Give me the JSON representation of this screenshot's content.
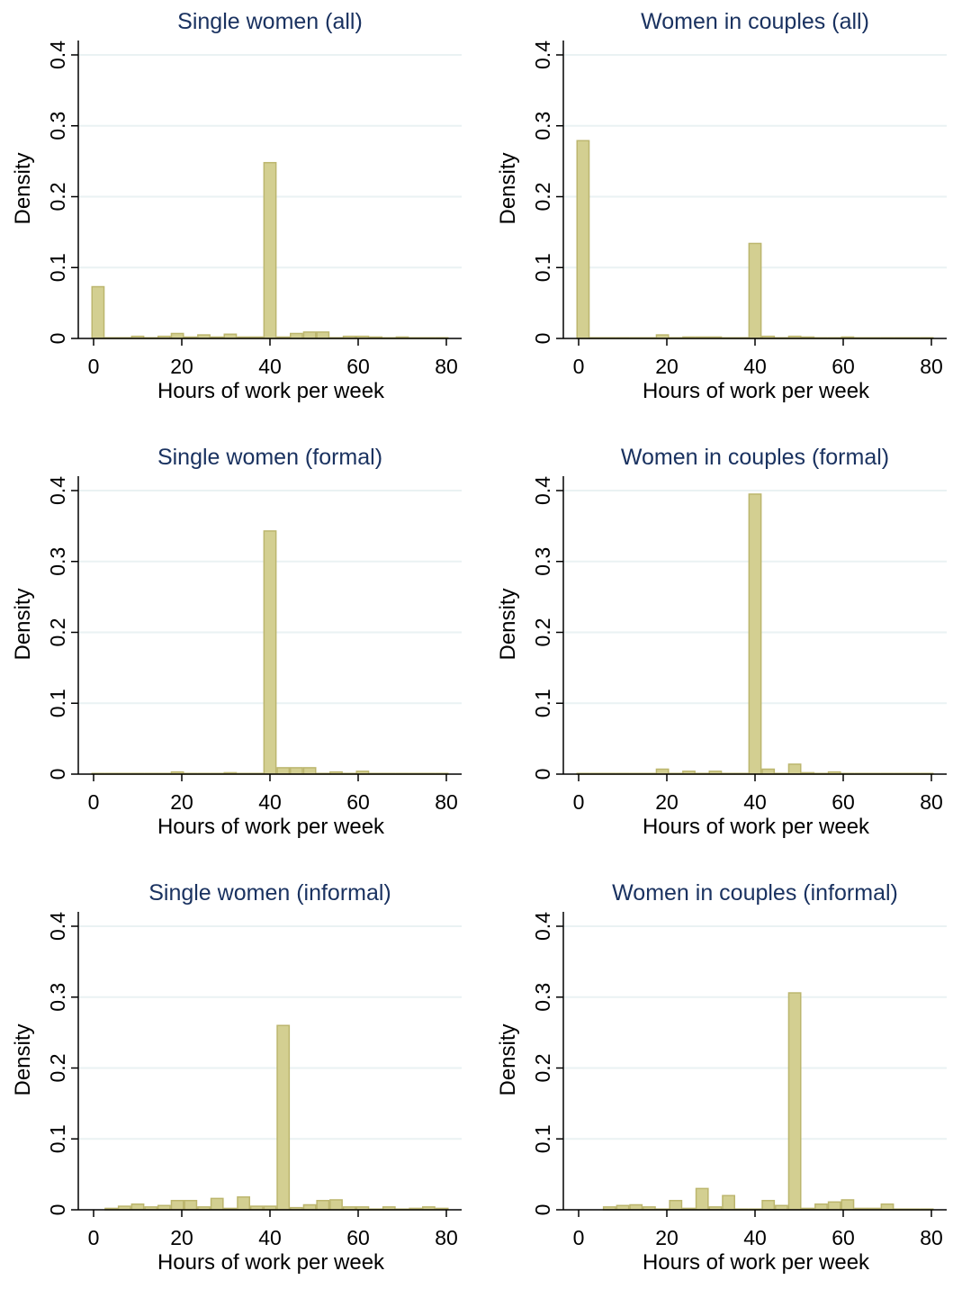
{
  "chart_data": [
    {
      "type": "bar",
      "title": "Single women (all)",
      "xlabel": "Hours of work per week",
      "ylabel": "Density",
      "xlim": [
        0,
        80
      ],
      "ylim": [
        0,
        0.4
      ],
      "xticks": [
        "0",
        "20",
        "40",
        "60",
        "80"
      ],
      "yticks": [
        "0",
        "0.1",
        "0.2",
        "0.3",
        "0.4"
      ],
      "grid": true,
      "bin_width": 3,
      "bars": [
        {
          "x": 1,
          "y": 0.073
        },
        {
          "x": 4,
          "y": 0.001
        },
        {
          "x": 7,
          "y": 0.001
        },
        {
          "x": 10,
          "y": 0.003
        },
        {
          "x": 13,
          "y": 0.001
        },
        {
          "x": 16,
          "y": 0.003
        },
        {
          "x": 19,
          "y": 0.007
        },
        {
          "x": 22,
          "y": 0.002
        },
        {
          "x": 25,
          "y": 0.005
        },
        {
          "x": 28,
          "y": 0.002
        },
        {
          "x": 31,
          "y": 0.006
        },
        {
          "x": 34,
          "y": 0.002
        },
        {
          "x": 37,
          "y": 0.002
        },
        {
          "x": 40,
          "y": 0.248
        },
        {
          "x": 43,
          "y": 0.002
        },
        {
          "x": 46,
          "y": 0.007
        },
        {
          "x": 49,
          "y": 0.009
        },
        {
          "x": 52,
          "y": 0.009
        },
        {
          "x": 55,
          "y": 0.001
        },
        {
          "x": 58,
          "y": 0.003
        },
        {
          "x": 61,
          "y": 0.003
        },
        {
          "x": 64,
          "y": 0.002
        },
        {
          "x": 67,
          "y": 0.001
        },
        {
          "x": 70,
          "y": 0.002
        },
        {
          "x": 73,
          "y": 0.001
        },
        {
          "x": 76,
          "y": 0.001
        },
        {
          "x": 79,
          "y": 0.001
        }
      ]
    },
    {
      "type": "bar",
      "title": "Women in couples (all)",
      "xlabel": "Hours of work per week",
      "ylabel": "Density",
      "xlim": [
        0,
        80
      ],
      "ylim": [
        0,
        0.4
      ],
      "xticks": [
        "0",
        "20",
        "40",
        "60",
        "80"
      ],
      "yticks": [
        "0",
        "0.1",
        "0.2",
        "0.3",
        "0.4"
      ],
      "grid": true,
      "bin_width": 3,
      "bars": [
        {
          "x": 1,
          "y": 0.279
        },
        {
          "x": 4,
          "y": 0.001
        },
        {
          "x": 7,
          "y": 0.001
        },
        {
          "x": 10,
          "y": 0.001
        },
        {
          "x": 13,
          "y": 0.001
        },
        {
          "x": 16,
          "y": 0.001
        },
        {
          "x": 19,
          "y": 0.005
        },
        {
          "x": 22,
          "y": 0.001
        },
        {
          "x": 25,
          "y": 0.002
        },
        {
          "x": 28,
          "y": 0.002
        },
        {
          "x": 31,
          "y": 0.002
        },
        {
          "x": 34,
          "y": 0.001
        },
        {
          "x": 37,
          "y": 0.001
        },
        {
          "x": 40,
          "y": 0.134
        },
        {
          "x": 43,
          "y": 0.003
        },
        {
          "x": 46,
          "y": 0.001
        },
        {
          "x": 49,
          "y": 0.003
        },
        {
          "x": 52,
          "y": 0.002
        },
        {
          "x": 55,
          "y": 0.001
        },
        {
          "x": 58,
          "y": 0.001
        },
        {
          "x": 61,
          "y": 0.002
        },
        {
          "x": 64,
          "y": 0.001
        },
        {
          "x": 67,
          "y": 0.001
        },
        {
          "x": 70,
          "y": 0.001
        },
        {
          "x": 73,
          "y": 0.001
        },
        {
          "x": 76,
          "y": 0.001
        },
        {
          "x": 79,
          "y": 0.001
        }
      ]
    },
    {
      "type": "bar",
      "title": "Single women (formal)",
      "xlabel": "Hours of work per week",
      "ylabel": "Density",
      "xlim": [
        0,
        80
      ],
      "ylim": [
        0,
        0.4
      ],
      "xticks": [
        "0",
        "20",
        "40",
        "60",
        "80"
      ],
      "yticks": [
        "0",
        "0.1",
        "0.2",
        "0.3",
        "0.4"
      ],
      "grid": true,
      "bin_width": 3,
      "bars": [
        {
          "x": 1,
          "y": 0.001
        },
        {
          "x": 4,
          "y": 0.001
        },
        {
          "x": 7,
          "y": 0.001
        },
        {
          "x": 10,
          "y": 0.001
        },
        {
          "x": 13,
          "y": 0.001
        },
        {
          "x": 16,
          "y": 0.001
        },
        {
          "x": 19,
          "y": 0.003
        },
        {
          "x": 22,
          "y": 0.001
        },
        {
          "x": 25,
          "y": 0.001
        },
        {
          "x": 28,
          "y": 0.001
        },
        {
          "x": 31,
          "y": 0.002
        },
        {
          "x": 34,
          "y": 0.001
        },
        {
          "x": 37,
          "y": 0.001
        },
        {
          "x": 40,
          "y": 0.343
        },
        {
          "x": 43,
          "y": 0.009
        },
        {
          "x": 46,
          "y": 0.009
        },
        {
          "x": 49,
          "y": 0.009
        },
        {
          "x": 52,
          "y": 0.001
        },
        {
          "x": 55,
          "y": 0.003
        },
        {
          "x": 58,
          "y": 0.001
        },
        {
          "x": 61,
          "y": 0.004
        },
        {
          "x": 64,
          "y": 0.001
        },
        {
          "x": 67,
          "y": 0.001
        },
        {
          "x": 70,
          "y": 0.001
        },
        {
          "x": 73,
          "y": 0.001
        },
        {
          "x": 76,
          "y": 0.001
        },
        {
          "x": 79,
          "y": 0.001
        }
      ]
    },
    {
      "type": "bar",
      "title": "Women in couples (formal)",
      "xlabel": "Hours of work per week",
      "ylabel": "Density",
      "xlim": [
        0,
        80
      ],
      "ylim": [
        0,
        0.4
      ],
      "xticks": [
        "0",
        "20",
        "40",
        "60",
        "80"
      ],
      "yticks": [
        "0",
        "0.1",
        "0.2",
        "0.3",
        "0.4"
      ],
      "grid": true,
      "bin_width": 3,
      "bars": [
        {
          "x": 1,
          "y": 0.001
        },
        {
          "x": 4,
          "y": 0.001
        },
        {
          "x": 7,
          "y": 0.001
        },
        {
          "x": 10,
          "y": 0.001
        },
        {
          "x": 13,
          "y": 0.001
        },
        {
          "x": 16,
          "y": 0.001
        },
        {
          "x": 19,
          "y": 0.007
        },
        {
          "x": 22,
          "y": 0.001
        },
        {
          "x": 25,
          "y": 0.004
        },
        {
          "x": 28,
          "y": 0.001
        },
        {
          "x": 31,
          "y": 0.004
        },
        {
          "x": 34,
          "y": 0.001
        },
        {
          "x": 37,
          "y": 0.001
        },
        {
          "x": 40,
          "y": 0.395
        },
        {
          "x": 43,
          "y": 0.007
        },
        {
          "x": 46,
          "y": 0.001
        },
        {
          "x": 49,
          "y": 0.014
        },
        {
          "x": 52,
          "y": 0.002
        },
        {
          "x": 55,
          "y": 0.001
        },
        {
          "x": 58,
          "y": 0.003
        },
        {
          "x": 61,
          "y": 0.001
        },
        {
          "x": 64,
          "y": 0.001
        },
        {
          "x": 67,
          "y": 0.001
        },
        {
          "x": 70,
          "y": 0.001
        },
        {
          "x": 73,
          "y": 0.001
        },
        {
          "x": 76,
          "y": 0.001
        },
        {
          "x": 79,
          "y": 0.001
        }
      ]
    },
    {
      "type": "bar",
      "title": "Single women (informal)",
      "xlabel": "Hours of work per week",
      "ylabel": "Density",
      "xlim": [
        0,
        80
      ],
      "ylim": [
        0,
        0.4
      ],
      "xticks": [
        "0",
        "20",
        "40",
        "60",
        "80"
      ],
      "yticks": [
        "0",
        "0.1",
        "0.2",
        "0.3",
        "0.4"
      ],
      "grid": true,
      "bin_width": 3,
      "bars": [
        {
          "x": 4,
          "y": 0.002
        },
        {
          "x": 7,
          "y": 0.005
        },
        {
          "x": 10,
          "y": 0.008
        },
        {
          "x": 13,
          "y": 0.004
        },
        {
          "x": 16,
          "y": 0.006
        },
        {
          "x": 19,
          "y": 0.013
        },
        {
          "x": 22,
          "y": 0.013
        },
        {
          "x": 25,
          "y": 0.004
        },
        {
          "x": 28,
          "y": 0.016
        },
        {
          "x": 31,
          "y": 0.002
        },
        {
          "x": 34,
          "y": 0.018
        },
        {
          "x": 37,
          "y": 0.005
        },
        {
          "x": 40,
          "y": 0.005
        },
        {
          "x": 43,
          "y": 0.26
        },
        {
          "x": 46,
          "y": 0.003
        },
        {
          "x": 49,
          "y": 0.007
        },
        {
          "x": 52,
          "y": 0.013
        },
        {
          "x": 55,
          "y": 0.014
        },
        {
          "x": 58,
          "y": 0.004
        },
        {
          "x": 61,
          "y": 0.004
        },
        {
          "x": 64,
          "y": 0.001
        },
        {
          "x": 67,
          "y": 0.004
        },
        {
          "x": 70,
          "y": 0.001
        },
        {
          "x": 73,
          "y": 0.002
        },
        {
          "x": 76,
          "y": 0.004
        },
        {
          "x": 79,
          "y": 0.002
        }
      ]
    },
    {
      "type": "bar",
      "title": "Women in couples (informal)",
      "xlabel": "Hours of work per week",
      "ylabel": "Density",
      "xlim": [
        0,
        80
      ],
      "ylim": [
        0,
        0.4
      ],
      "xticks": [
        "0",
        "20",
        "40",
        "60",
        "80"
      ],
      "yticks": [
        "0",
        "0.1",
        "0.2",
        "0.3",
        "0.4"
      ],
      "grid": true,
      "bin_width": 3,
      "bars": [
        {
          "x": 7,
          "y": 0.004
        },
        {
          "x": 10,
          "y": 0.006
        },
        {
          "x": 13,
          "y": 0.007
        },
        {
          "x": 16,
          "y": 0.004
        },
        {
          "x": 19,
          "y": 0.001
        },
        {
          "x": 22,
          "y": 0.013
        },
        {
          "x": 25,
          "y": 0.002
        },
        {
          "x": 28,
          "y": 0.03
        },
        {
          "x": 31,
          "y": 0.004
        },
        {
          "x": 34,
          "y": 0.02
        },
        {
          "x": 37,
          "y": 0.001
        },
        {
          "x": 40,
          "y": 0.001
        },
        {
          "x": 43,
          "y": 0.013
        },
        {
          "x": 46,
          "y": 0.006
        },
        {
          "x": 49,
          "y": 0.306
        },
        {
          "x": 52,
          "y": 0.002
        },
        {
          "x": 55,
          "y": 0.008
        },
        {
          "x": 58,
          "y": 0.011
        },
        {
          "x": 61,
          "y": 0.014
        },
        {
          "x": 64,
          "y": 0.002
        },
        {
          "x": 67,
          "y": 0.002
        },
        {
          "x": 70,
          "y": 0.008
        },
        {
          "x": 73,
          "y": 0.001
        },
        {
          "x": 76,
          "y": 0.001
        },
        {
          "x": 79,
          "y": 0.001
        }
      ]
    }
  ]
}
